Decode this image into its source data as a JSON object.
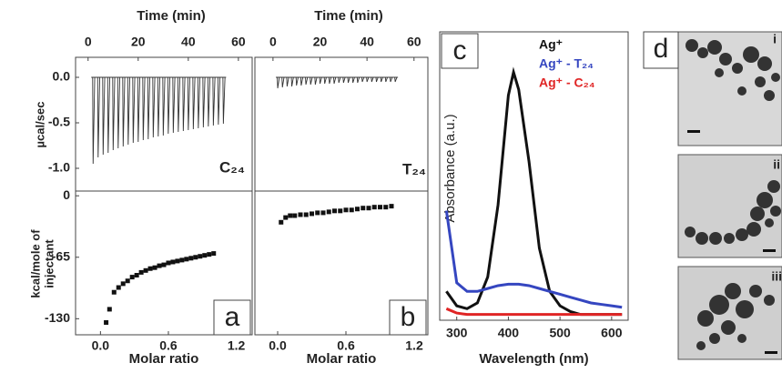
{
  "chart_data": [
    {
      "type": "spikes",
      "x_label": "Time  (min)",
      "y_label": "µcal/sec",
      "label": "C₂₄",
      "x": [
        2,
        4,
        6,
        8,
        10,
        12,
        14,
        16,
        18,
        20,
        22,
        24,
        26,
        28,
        30,
        32,
        34,
        36,
        38,
        40,
        42,
        44,
        46,
        48,
        50,
        52,
        54
      ],
      "values": [
        -0.95,
        -0.88,
        -0.85,
        -0.83,
        -0.8,
        -0.78,
        -0.76,
        -0.74,
        -0.72,
        -0.71,
        -0.69,
        -0.68,
        -0.66,
        -0.65,
        -0.64,
        -0.62,
        -0.61,
        -0.6,
        -0.59,
        -0.58,
        -0.57,
        -0.56,
        -0.55,
        -0.54,
        -0.53,
        -0.52,
        -0.51
      ],
      "xlim": [
        -5,
        65.5
      ],
      "ylim": [
        -1.25,
        0.22
      ],
      "xticks": [
        0,
        20,
        40,
        60
      ],
      "yticks": [
        {
          "value": 0,
          "label": "0.0"
        },
        {
          "value": -0.5,
          "label": "-0.5"
        },
        {
          "value": -1,
          "label": "-1.0"
        }
      ]
    },
    {
      "type": "scatter",
      "x_label": "Molar ratio",
      "y_label": [
        "kcal/mole of",
        "injectant"
      ],
      "panel": "a",
      "x": [
        0.05,
        0.08,
        0.12,
        0.16,
        0.2,
        0.24,
        0.28,
        0.32,
        0.36,
        0.4,
        0.44,
        0.48,
        0.52,
        0.56,
        0.6,
        0.64,
        0.68,
        0.72,
        0.76,
        0.8,
        0.84,
        0.88,
        0.92,
        0.96,
        1.0
      ],
      "values": [
        -134,
        -120,
        -102,
        -97,
        -93,
        -90,
        -86,
        -84,
        -81,
        -79,
        -77,
        -76,
        -74,
        -73,
        -71,
        -70,
        -69,
        -68,
        -67,
        -66,
        -65,
        -64,
        -63,
        -62,
        -61
      ],
      "xlim": [
        -0.22,
        1.34
      ],
      "ylim": [
        -147,
        5
      ],
      "xticks": [
        {
          "value": 0,
          "label": "0.0"
        },
        {
          "value": 0.6,
          "label": "0.6"
        },
        {
          "value": 1.2,
          "label": "1.2"
        }
      ],
      "yticks": [
        0,
        -65,
        -130
      ]
    },
    {
      "type": "spikes",
      "x_label": "Time  (min)",
      "label": "T₂₄",
      "x": [
        2,
        4,
        6,
        8,
        10,
        12,
        14,
        16,
        18,
        20,
        22,
        24,
        26,
        28,
        30,
        32,
        34,
        36,
        38,
        40,
        42,
        44,
        46,
        48,
        50,
        52
      ],
      "values": [
        -0.12,
        -0.11,
        -0.1,
        -0.1,
        -0.09,
        -0.09,
        -0.08,
        -0.08,
        -0.08,
        -0.07,
        -0.07,
        -0.07,
        -0.07,
        -0.06,
        -0.06,
        -0.06,
        -0.06,
        -0.06,
        -0.05,
        -0.05,
        -0.05,
        -0.05,
        -0.05,
        -0.05,
        -0.05,
        -0.05
      ],
      "xlim": [
        -7.7,
        65.9
      ],
      "ylim": [
        -1.25,
        0.22
      ],
      "xticks": [
        0,
        20,
        40,
        60
      ]
    },
    {
      "type": "scatter",
      "x_label": "Molar ratio",
      "panel": "b",
      "x": [
        0.03,
        0.07,
        0.11,
        0.15,
        0.2,
        0.25,
        0.3,
        0.35,
        0.4,
        0.45,
        0.5,
        0.55,
        0.6,
        0.65,
        0.7,
        0.75,
        0.8,
        0.85,
        0.9,
        0.95,
        1.0
      ],
      "values": [
        -28,
        -23,
        -21,
        -21,
        -20,
        -20,
        -19,
        -18,
        -18,
        -17,
        -16,
        -16,
        -15,
        -15,
        -14,
        -13,
        -13,
        -12,
        -12,
        -12,
        -11
      ],
      "xlim": [
        -0.2,
        1.32
      ],
      "ylim": [
        -147,
        5
      ],
      "xticks": [
        {
          "value": 0,
          "label": "0.0"
        },
        {
          "value": 0.6,
          "label": "0.6"
        },
        {
          "value": 1.2,
          "label": "1.2"
        }
      ]
    },
    {
      "type": "line",
      "x_label": "Wavelength (nm)",
      "y_label": "Absorbance (a.u.)",
      "panel": "c",
      "x": [
        280,
        300,
        320,
        340,
        360,
        380,
        400,
        410,
        420,
        440,
        460,
        480,
        500,
        520,
        540,
        560,
        580,
        600,
        620
      ],
      "series": [
        {
          "name": "Ag⁺",
          "color": "#111111",
          "values": [
            0.1,
            0.05,
            0.04,
            0.06,
            0.15,
            0.4,
            0.78,
            0.86,
            0.8,
            0.55,
            0.25,
            0.1,
            0.05,
            0.03,
            0.02,
            0.02,
            0.02,
            0.02,
            0.02
          ]
        },
        {
          "name": "Ag⁺ - T₂₄",
          "color": "#3546c0",
          "values": [
            0.38,
            0.13,
            0.1,
            0.1,
            0.11,
            0.12,
            0.125,
            0.125,
            0.125,
            0.12,
            0.11,
            0.1,
            0.09,
            0.08,
            0.07,
            0.06,
            0.055,
            0.05,
            0.045
          ]
        },
        {
          "name": "Ag⁺ - C₂₄",
          "color": "#e02525",
          "values": [
            0.04,
            0.025,
            0.02,
            0.02,
            0.02,
            0.02,
            0.02,
            0.02,
            0.02,
            0.02,
            0.02,
            0.02,
            0.02,
            0.02,
            0.02,
            0.02,
            0.02,
            0.02,
            0.02
          ]
        }
      ],
      "xlim": [
        267,
        632
      ],
      "ylim": [
        0,
        1
      ],
      "xticks": [
        300,
        400,
        500,
        600
      ]
    }
  ],
  "micrographs": {
    "panel": "d",
    "labels": [
      "i",
      "ii",
      "iii"
    ]
  }
}
